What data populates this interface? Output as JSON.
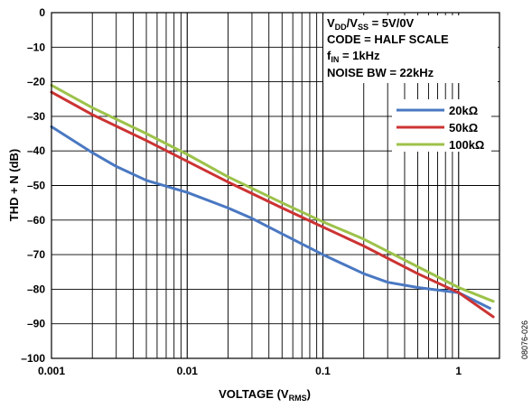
{
  "chart_data": {
    "type": "line",
    "xlabel_main": "VOLTAGE (V",
    "xlabel_sub": "RMS",
    "xlabel_close": ")",
    "ylabel": "THD + N (dB)",
    "x_scale": "log",
    "xlim": [
      0.001,
      2
    ],
    "ylim": [
      -100,
      0
    ],
    "x_ticks": [
      0.001,
      0.01,
      0.1,
      1
    ],
    "x_tick_labels": [
      "0.001",
      "0.01",
      "0.1",
      "1"
    ],
    "y_ticks": [
      0,
      -10,
      -20,
      -30,
      -40,
      -50,
      -60,
      -70,
      -80,
      -90,
      -100
    ],
    "y_tick_labels": [
      "0",
      "–10",
      "–20",
      "–30",
      "–40",
      "–50",
      "–60",
      "–70",
      "–80",
      "–90",
      "–100"
    ],
    "grid": true,
    "legend_position": "top-right",
    "conditions": {
      "line1": {
        "a": "V",
        "a_sub": "DD",
        "b": "/V",
        "b_sub": "SS",
        "c": " = 5V/0V"
      },
      "line2": "CODE = HALF SCALE",
      "line3": {
        "a": "f",
        "a_sub": "IN",
        "b": " = 1kHz"
      },
      "line4": "NOISE BW = 22kHz"
    },
    "figure_id": "08076-026",
    "series": [
      {
        "name": "20kΩ",
        "color": "#4a78c2",
        "x": [
          0.001,
          0.002,
          0.003,
          0.005,
          0.01,
          0.02,
          0.03,
          0.05,
          0.1,
          0.2,
          0.3,
          0.5,
          1,
          1.7
        ],
        "y": [
          -33,
          -40.5,
          -44.5,
          -48.5,
          -52,
          -56.5,
          -59.5,
          -64,
          -70,
          -75.5,
          -78,
          -79.5,
          -81,
          -85.5
        ]
      },
      {
        "name": "50kΩ",
        "color": "#cc3333",
        "x": [
          0.001,
          0.002,
          0.005,
          0.01,
          0.02,
          0.05,
          0.1,
          0.2,
          0.5,
          1,
          1.8
        ],
        "y": [
          -23,
          -29.5,
          -37,
          -43,
          -49,
          -56.5,
          -62,
          -67.5,
          -75.5,
          -81,
          -88
        ]
      },
      {
        "name": "100kΩ",
        "color": "#9dc24a",
        "x": [
          0.001,
          0.002,
          0.005,
          0.01,
          0.02,
          0.05,
          0.1,
          0.2,
          0.5,
          1,
          1.8
        ],
        "y": [
          -21,
          -27.5,
          -35,
          -41,
          -47.5,
          -55,
          -60.5,
          -65.5,
          -73.5,
          -79.5,
          -83.5
        ]
      }
    ]
  }
}
